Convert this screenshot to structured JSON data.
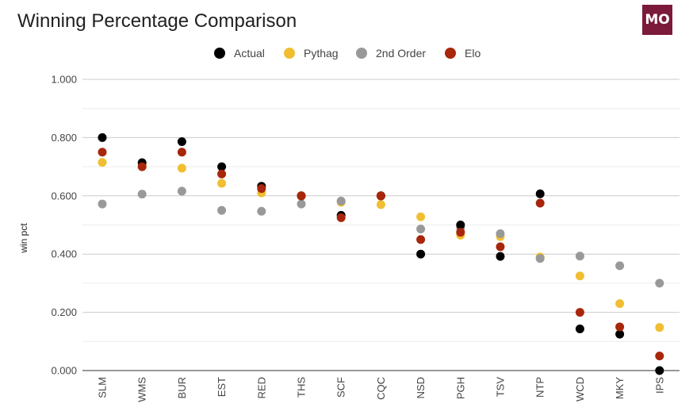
{
  "title": "Winning Percentage Comparison",
  "logo": {
    "text": "MO",
    "color": "#7b1a3a"
  },
  "chart_data": {
    "type": "scatter",
    "title": "Winning Percentage Comparison",
    "xlabel": "",
    "ylabel": "win pct",
    "ylim": [
      0,
      1
    ],
    "yticks": [
      "0.000",
      "0.200",
      "0.400",
      "0.600",
      "0.800",
      "1.000"
    ],
    "grid": true,
    "legend_position": "top",
    "categories": [
      "SLM",
      "WMS",
      "BUR",
      "EST",
      "RED",
      "THS",
      "SCF",
      "CQC",
      "NSD",
      "PGH",
      "TSV",
      "NTP",
      "WCD",
      "MKY",
      "IPS"
    ],
    "series": [
      {
        "name": "Pythag",
        "color": "#f1be32",
        "values": [
          0.715,
          0.705,
          0.695,
          0.643,
          0.61,
          0.6,
          0.578,
          0.57,
          0.528,
          0.465,
          0.46,
          0.39,
          0.325,
          0.23,
          0.148
        ]
      },
      {
        "name": "2nd Order",
        "color": "#999999",
        "values": [
          0.572,
          0.606,
          0.616,
          0.55,
          0.547,
          0.572,
          0.582,
          0.6,
          0.486,
          0.49,
          0.47,
          0.385,
          0.393,
          0.36,
          0.3
        ]
      },
      {
        "name": "Actual",
        "color": "#000000",
        "values": [
          0.8,
          0.714,
          0.786,
          0.7,
          0.633,
          0.6,
          0.533,
          0.6,
          0.4,
          0.5,
          0.392,
          0.607,
          0.143,
          0.125,
          0.0
        ]
      },
      {
        "name": "Elo",
        "color": "#a8260b",
        "values": [
          0.75,
          0.7,
          0.75,
          0.675,
          0.625,
          0.6,
          0.525,
          0.6,
          0.45,
          0.475,
          0.425,
          0.575,
          0.2,
          0.15,
          0.05
        ]
      }
    ],
    "legend": [
      {
        "name": "Actual",
        "color": "#000000"
      },
      {
        "name": "Pythag",
        "color": "#f1be32"
      },
      {
        "name": "2nd Order",
        "color": "#999999"
      },
      {
        "name": "Elo",
        "color": "#a8260b"
      }
    ]
  }
}
